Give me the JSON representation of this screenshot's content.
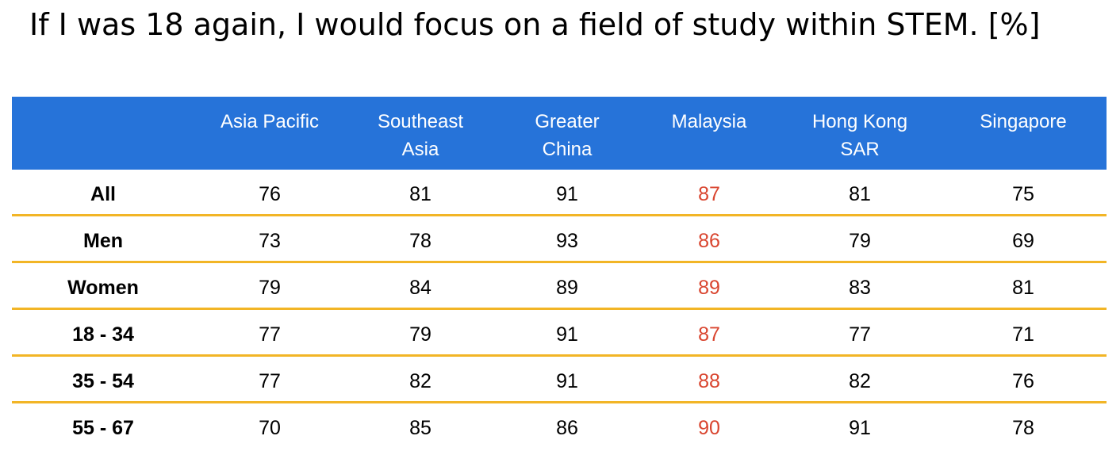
{
  "title": "If I was 18 again, I would focus on a field of study within STEM. [%]",
  "colors": {
    "header_bg": "#2673d9",
    "row_rule": "#f2b526",
    "highlight_text": "#d9452f"
  },
  "chart_data": {
    "type": "table",
    "title": "If I was 18 again, I would focus on a field of study within STEM. [%]",
    "columns": [
      "Asia Pacific",
      "Southeast Asia",
      "Greater China",
      "Malaysia",
      "Hong Kong SAR",
      "Singapore"
    ],
    "column_header_lines": [
      [
        "Asia Pacific"
      ],
      [
        "Southeast",
        "Asia"
      ],
      [
        "Greater",
        "China"
      ],
      [
        "Malaysia"
      ],
      [
        "Hong Kong",
        "SAR"
      ],
      [
        "Singapore"
      ]
    ],
    "highlighted_column": "Malaysia",
    "rows": [
      {
        "label": "All",
        "values": [
          76,
          81,
          91,
          87,
          81,
          75
        ]
      },
      {
        "label": "Men",
        "values": [
          73,
          78,
          93,
          86,
          79,
          69
        ]
      },
      {
        "label": "Women",
        "values": [
          79,
          84,
          89,
          89,
          83,
          81
        ]
      },
      {
        "label": "18 - 34",
        "values": [
          77,
          79,
          91,
          87,
          77,
          71
        ]
      },
      {
        "label": "35 - 54",
        "values": [
          77,
          82,
          91,
          88,
          82,
          76
        ]
      },
      {
        "label": "55 - 67",
        "values": [
          70,
          85,
          86,
          90,
          91,
          78
        ]
      }
    ]
  }
}
